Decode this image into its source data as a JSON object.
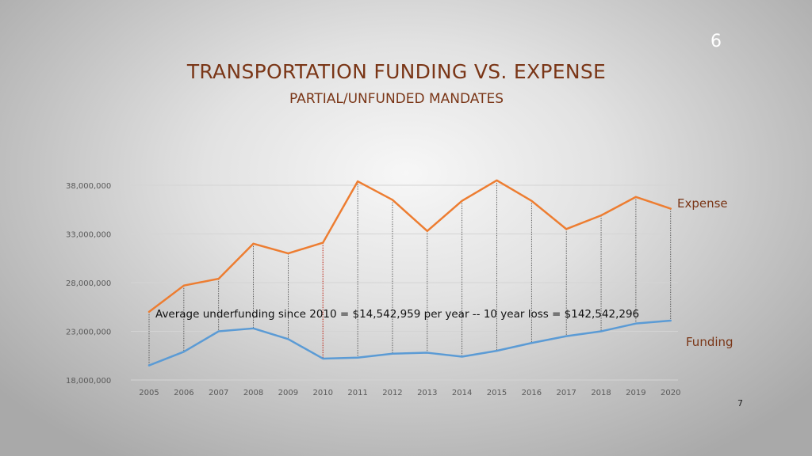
{
  "slide": {
    "number": "6",
    "title": "TRANSPORTATION FUNDING VS. EXPENSE",
    "subtitle": "PARTIAL/UNFUNDED MANDATES",
    "page_number": "7"
  },
  "chart_data": {
    "type": "line",
    "title": "",
    "xlabel": "",
    "ylabel": "",
    "categories": [
      "2005",
      "2006",
      "2007",
      "2008",
      "2009",
      "2010",
      "2011",
      "2012",
      "2013",
      "2014",
      "2015",
      "2016",
      "2017",
      "2018",
      "2019",
      "2020"
    ],
    "ylim": [
      18000000,
      38000000
    ],
    "yticks": [
      18000000,
      23000000,
      28000000,
      33000000,
      38000000
    ],
    "ytick_labels": [
      "18,000,000",
      "23,000,000",
      "28,000,000",
      "33,000,000",
      "38,000,000"
    ],
    "grid": true,
    "series": [
      {
        "name": "Expense",
        "color": "#ed7d31",
        "values": [
          25000000,
          27700000,
          28400000,
          32000000,
          31000000,
          32100000,
          38400000,
          36500000,
          33300000,
          36400000,
          38500000,
          36400000,
          33500000,
          34900000,
          36800000,
          35600000
        ]
      },
      {
        "name": "Funding",
        "color": "#5b9bd5",
        "values": [
          19500000,
          20900000,
          23000000,
          23300000,
          22200000,
          20200000,
          20300000,
          20700000,
          20800000,
          20400000,
          21000000,
          21800000,
          22500000,
          23000000,
          23800000,
          24100000
        ]
      }
    ],
    "gap_lines": {
      "color": "#404040",
      "highlight_color": "#c0392b",
      "highlight_category": "2010"
    },
    "annotation": "Average underfunding since 2010 = $14,542,959 per year  --  10 year loss =  $142,542,296"
  }
}
